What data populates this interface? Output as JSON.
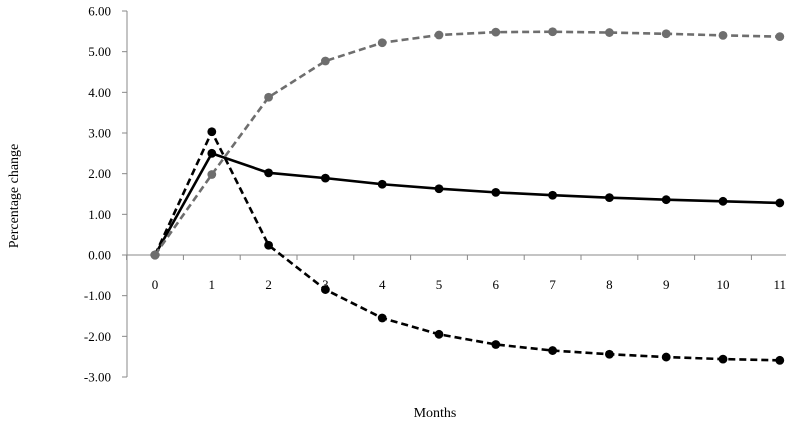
{
  "chart_data": {
    "type": "line",
    "title": "",
    "xlabel": "Months",
    "ylabel": "Percentage change",
    "x": [
      0,
      1,
      2,
      3,
      4,
      5,
      6,
      7,
      8,
      9,
      10,
      11
    ],
    "x_tick_labels": [
      "0",
      "1",
      "2",
      "3",
      "4",
      "5",
      "6",
      "7",
      "8",
      "9",
      "10",
      "11"
    ],
    "y_tick_labels": [
      "6.00",
      "5.00",
      "4.00",
      "3.00",
      "2.00",
      "1.00",
      "0.00",
      "-1.00",
      "-2.00",
      "-3.00"
    ],
    "ylim": [
      -3,
      6
    ],
    "y_ticks": [
      6,
      5,
      4,
      3,
      2,
      1,
      0,
      -1,
      -2,
      -3
    ],
    "grid": false,
    "legend": "none",
    "series": [
      {
        "values": [
          0,
          2.5,
          2.02,
          1.89,
          1.74,
          1.63,
          1.54,
          1.47,
          1.41,
          1.36,
          1.32,
          1.28
        ],
        "color": "#000000",
        "style": "solid"
      },
      {
        "values": [
          0,
          3.03,
          0.24,
          -0.85,
          -1.55,
          -1.95,
          -2.2,
          -2.35,
          -2.44,
          -2.51,
          -2.56,
          -2.59
        ],
        "color": "#000000",
        "style": "dashed"
      },
      {
        "values": [
          0,
          1.98,
          3.88,
          4.77,
          5.22,
          5.41,
          5.48,
          5.49,
          5.47,
          5.44,
          5.4,
          5.37
        ],
        "color": "#6e6e6e",
        "style": "dashed"
      }
    ]
  }
}
